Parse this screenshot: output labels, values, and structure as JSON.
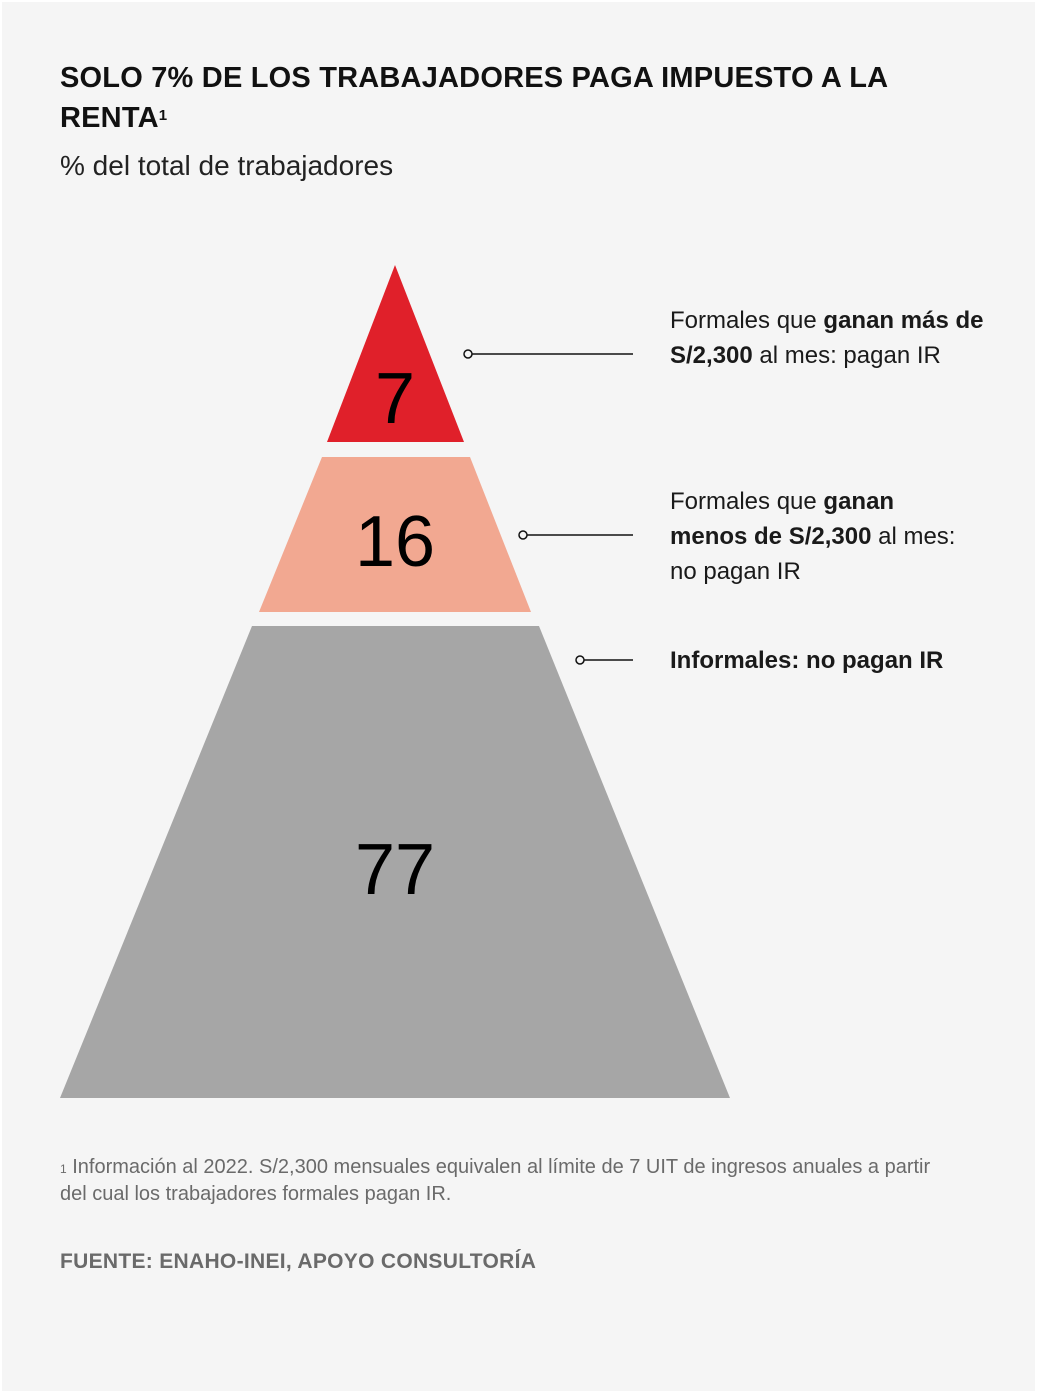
{
  "title": "SOLO 7% DE LOS TRABAJADORES PAGA IMPUESTO A LA RENTA",
  "title_marker": "1",
  "subtitle": "% del total de trabajadores",
  "colors": {
    "background": "#f5f5f5",
    "top": "#e0202a",
    "middle": "#f2a891",
    "bottom": "#a6a6a6"
  },
  "chart_data": {
    "type": "pyramid",
    "unit": "% del total de trabajadores",
    "segments": [
      {
        "value": 7,
        "label": "7",
        "color": "#e0202a",
        "annotation": [
          {
            "text": "Formales que ",
            "bold": false
          },
          {
            "text": "ganan más de S/2,300",
            "bold": true
          },
          {
            "text": " al mes: pagan IR",
            "bold": false
          }
        ]
      },
      {
        "value": 16,
        "label": "16",
        "color": "#f2a891",
        "annotation": [
          {
            "text": "Formales que ",
            "bold": false
          },
          {
            "text": "ganan menos de S/2,300",
            "bold": true
          },
          {
            "text": " al mes: no pagan IR",
            "bold": false
          }
        ]
      },
      {
        "value": 77,
        "label": "77",
        "color": "#a6a6a6",
        "annotation": [
          {
            "text": "Informales: no pagan IR",
            "bold": true
          }
        ]
      }
    ]
  },
  "footnote": {
    "marker": "1",
    "text": "Información al 2022. S/2,300 mensuales equivalen al límite de 7 UIT de ingresos anuales a partir del cual los trabajadores formales pagan IR."
  },
  "source": "FUENTE: ENAHO-INEI, APOYO CONSULTORÍA"
}
